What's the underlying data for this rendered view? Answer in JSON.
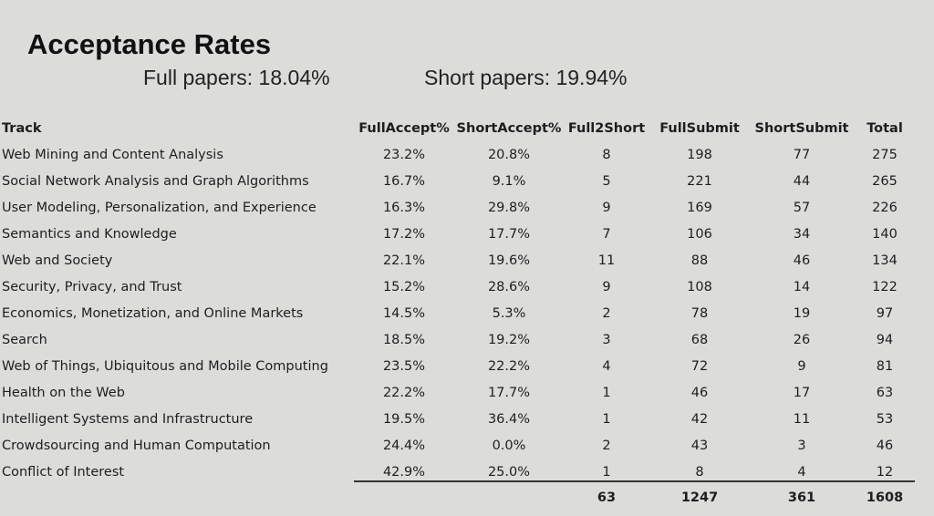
{
  "header": {
    "title": "Acceptance Rates",
    "full_rate": "Full papers: 18.04%",
    "short_rate": "Short papers: 19.94%"
  },
  "table": {
    "columns": [
      "Track",
      "FullAccept%",
      "ShortAccept%",
      "Full2Short",
      "FullSubmit",
      "ShortSubmit",
      "Total"
    ],
    "rows": [
      [
        "Web Mining and Content Analysis",
        "23.2%",
        "20.8%",
        8,
        198,
        77,
        275
      ],
      [
        "Social Network Analysis and Graph Algorithms",
        "16.7%",
        "9.1%",
        5,
        221,
        44,
        265
      ],
      [
        "User Modeling, Personalization, and Experience",
        "16.3%",
        "29.8%",
        9,
        169,
        57,
        226
      ],
      [
        "Semantics and Knowledge",
        "17.2%",
        "17.7%",
        7,
        106,
        34,
        140
      ],
      [
        "Web and Society",
        "22.1%",
        "19.6%",
        11,
        88,
        46,
        134
      ],
      [
        "Security, Privacy, and Trust",
        "15.2%",
        "28.6%",
        9,
        108,
        14,
        122
      ],
      [
        "Economics, Monetization, and Online Markets",
        "14.5%",
        "5.3%",
        2,
        78,
        19,
        97
      ],
      [
        "Search",
        "18.5%",
        "19.2%",
        3,
        68,
        26,
        94
      ],
      [
        "Web of Things, Ubiquitous and Mobile Computing",
        "23.5%",
        "22.2%",
        4,
        72,
        9,
        81
      ],
      [
        "Health on the Web",
        "22.2%",
        "17.7%",
        1,
        46,
        17,
        63
      ],
      [
        "Intelligent Systems and Infrastructure",
        "19.5%",
        "36.4%",
        1,
        42,
        11,
        53
      ],
      [
        "Crowdsourcing and Human Computation",
        "24.4%",
        "0.0%",
        2,
        43,
        3,
        46
      ],
      [
        "Conflict of Interest",
        "42.9%",
        "25.0%",
        1,
        8,
        4,
        12
      ]
    ],
    "totals": [
      63,
      1247,
      361,
      1608
    ]
  }
}
